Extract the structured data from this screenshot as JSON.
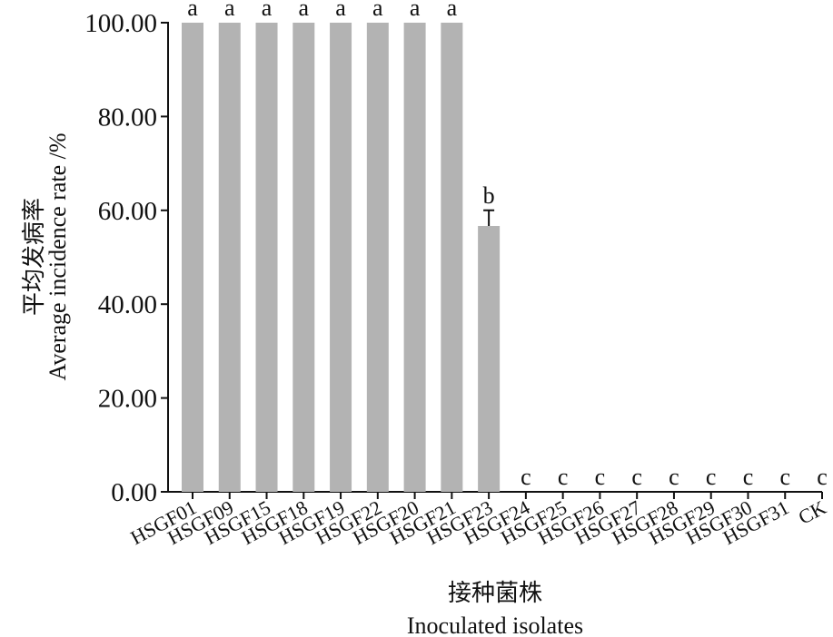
{
  "chart_data": {
    "type": "bar",
    "y_label": [
      "平均发病率",
      "Average incidence rate /%"
    ],
    "x_label": [
      "接种菌株",
      "Inoculated isolates"
    ],
    "categories": [
      "HSGF01",
      "HSGF09",
      "HSGF15",
      "HSGF18",
      "HSGF19",
      "HSGF22",
      "HSGF20",
      "HSGF21",
      "HSGF23",
      "HSGF24",
      "HSGF25",
      "HSGF26",
      "HSGF27",
      "HSGF28",
      "HSGF29",
      "HSGF30",
      "HSGF31",
      "CK"
    ],
    "values": [
      100,
      100,
      100,
      100,
      100,
      100,
      100,
      100,
      56.67,
      0,
      0,
      0,
      0,
      0,
      0,
      0,
      0,
      0
    ],
    "errors": [
      null,
      null,
      null,
      null,
      null,
      null,
      null,
      null,
      3.33,
      null,
      null,
      null,
      null,
      null,
      null,
      null,
      null,
      null
    ],
    "significance": [
      "a",
      "a",
      "a",
      "a",
      "a",
      "a",
      "a",
      "a",
      "b",
      "c",
      "c",
      "c",
      "c",
      "c",
      "c",
      "c",
      "c",
      "c"
    ],
    "color": "#b3b3b3",
    "ylim": [
      0,
      100
    ],
    "yticks": [
      {
        "value": 0,
        "label": "0.00"
      },
      {
        "value": 20,
        "label": "20.00"
      },
      {
        "value": 40,
        "label": "40.00"
      },
      {
        "value": 60,
        "label": "60.00"
      },
      {
        "value": 80,
        "label": "80.00"
      },
      {
        "value": 100,
        "label": "100.00"
      }
    ]
  }
}
